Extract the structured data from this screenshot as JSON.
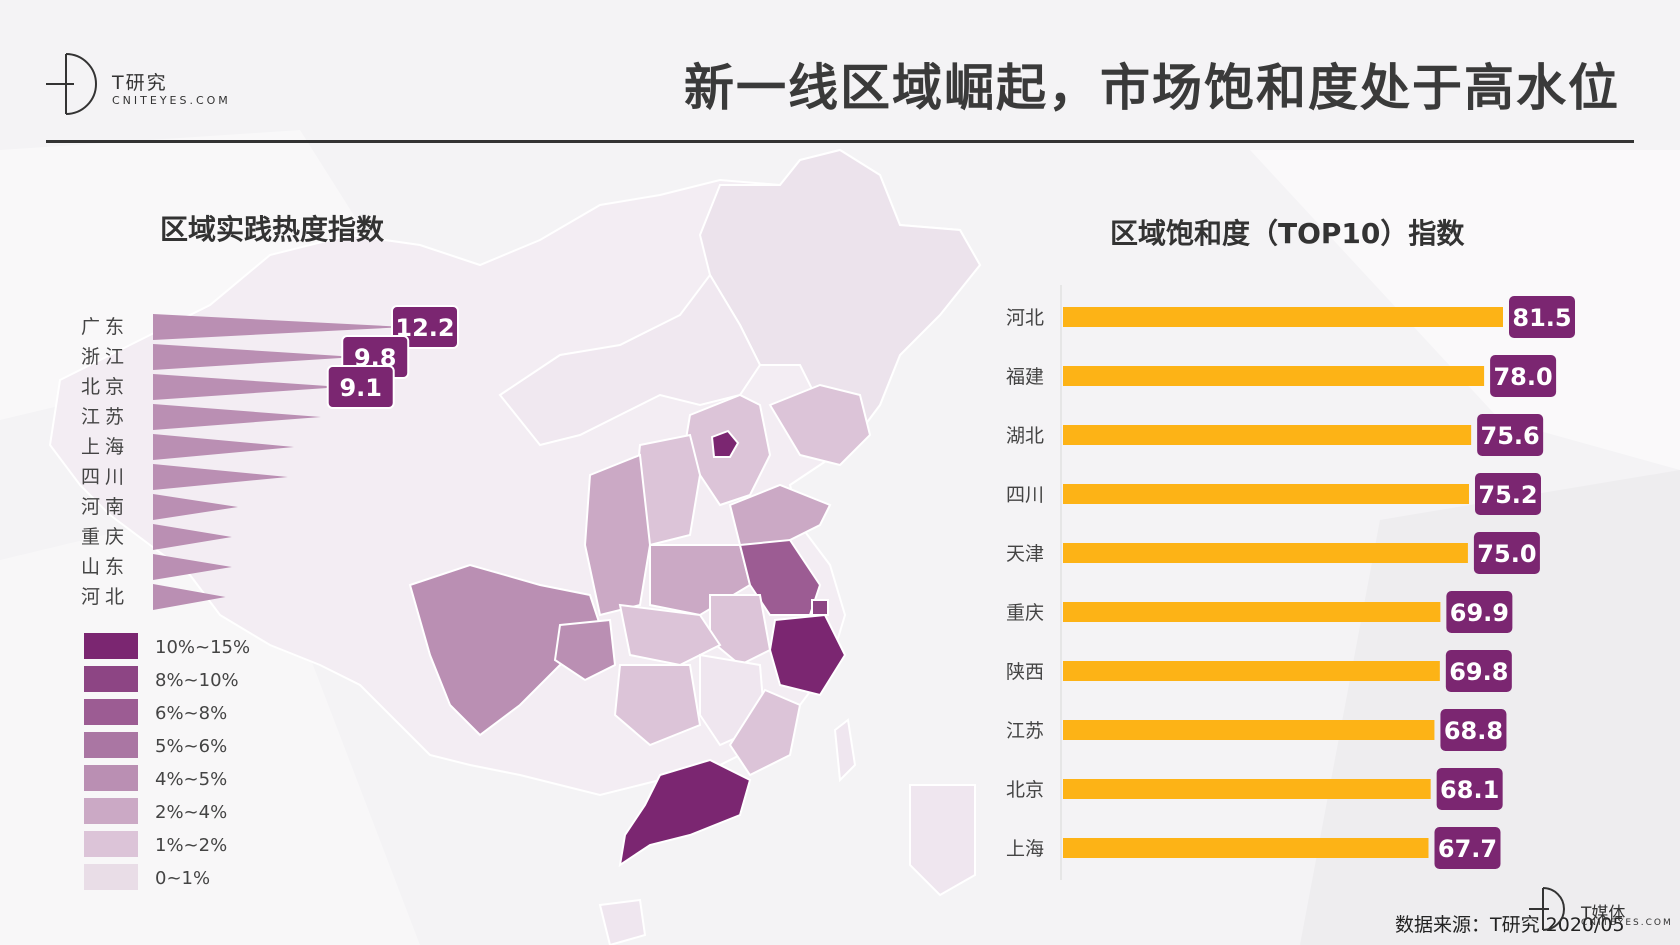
{
  "header": {
    "logo_main": "T研究",
    "logo_sub": "CNITEYES.COM",
    "title": "新一线区域崛起，市场饱和度处于高水位"
  },
  "footer": {
    "source": "数据来源：T研究 2020/05",
    "logo_main": "T媒体",
    "logo_sub": "CNITEYES.COM"
  },
  "colors": {
    "bar": "#fdb316",
    "label_bg": "#7b2671",
    "purple_dark": "#7b2671",
    "purple_light": "#efe6ef"
  },
  "chart_data": [
    {
      "type": "bar",
      "title": "区域实践热度指数",
      "orientation": "horizontal",
      "style": "triangle",
      "categories": [
        "广东",
        "浙江",
        "北京",
        "江苏",
        "上海",
        "四川",
        "河南",
        "重庆",
        "山东",
        "河北"
      ],
      "values": [
        12.2,
        9.8,
        9.1,
        8.1,
        6.8,
        6.5,
        4.1,
        3.8,
        3.8,
        3.5
      ],
      "labels": [
        "12.2",
        "9.8",
        "9.1",
        null,
        null,
        null,
        null,
        null,
        null,
        null
      ],
      "legend": [
        {
          "label": "10%~15%",
          "color": "#7b2671"
        },
        {
          "label": "8%~10%",
          "color": "#8d4584"
        },
        {
          "label": "6%~8%",
          "color": "#9c5c93"
        },
        {
          "label": "5%~6%",
          "color": "#aa76a3"
        },
        {
          "label": "4%~5%",
          "color": "#ba8fb3"
        },
        {
          "label": "2%~4%",
          "color": "#cba9c5"
        },
        {
          "label": "1%~2%",
          "color": "#dcc4d8"
        },
        {
          "label": "0~1%",
          "color": "#e9dde7"
        }
      ]
    },
    {
      "type": "bar",
      "title": "区域饱和度（TOP10）指数",
      "orientation": "horizontal",
      "categories": [
        "河北",
        "福建",
        "湖北",
        "四川",
        "天津",
        "重庆",
        "陕西",
        "江苏",
        "北京",
        "上海"
      ],
      "values": [
        81.5,
        78.0,
        75.6,
        75.2,
        75.0,
        69.9,
        69.8,
        68.8,
        68.1,
        67.7
      ],
      "labels": [
        "81.5",
        "78.0",
        "75.6",
        "75.2",
        "75.0",
        "69.9",
        "69.8",
        "68.8",
        "68.1",
        "67.7"
      ],
      "xlim": [
        0,
        81.5
      ]
    }
  ]
}
